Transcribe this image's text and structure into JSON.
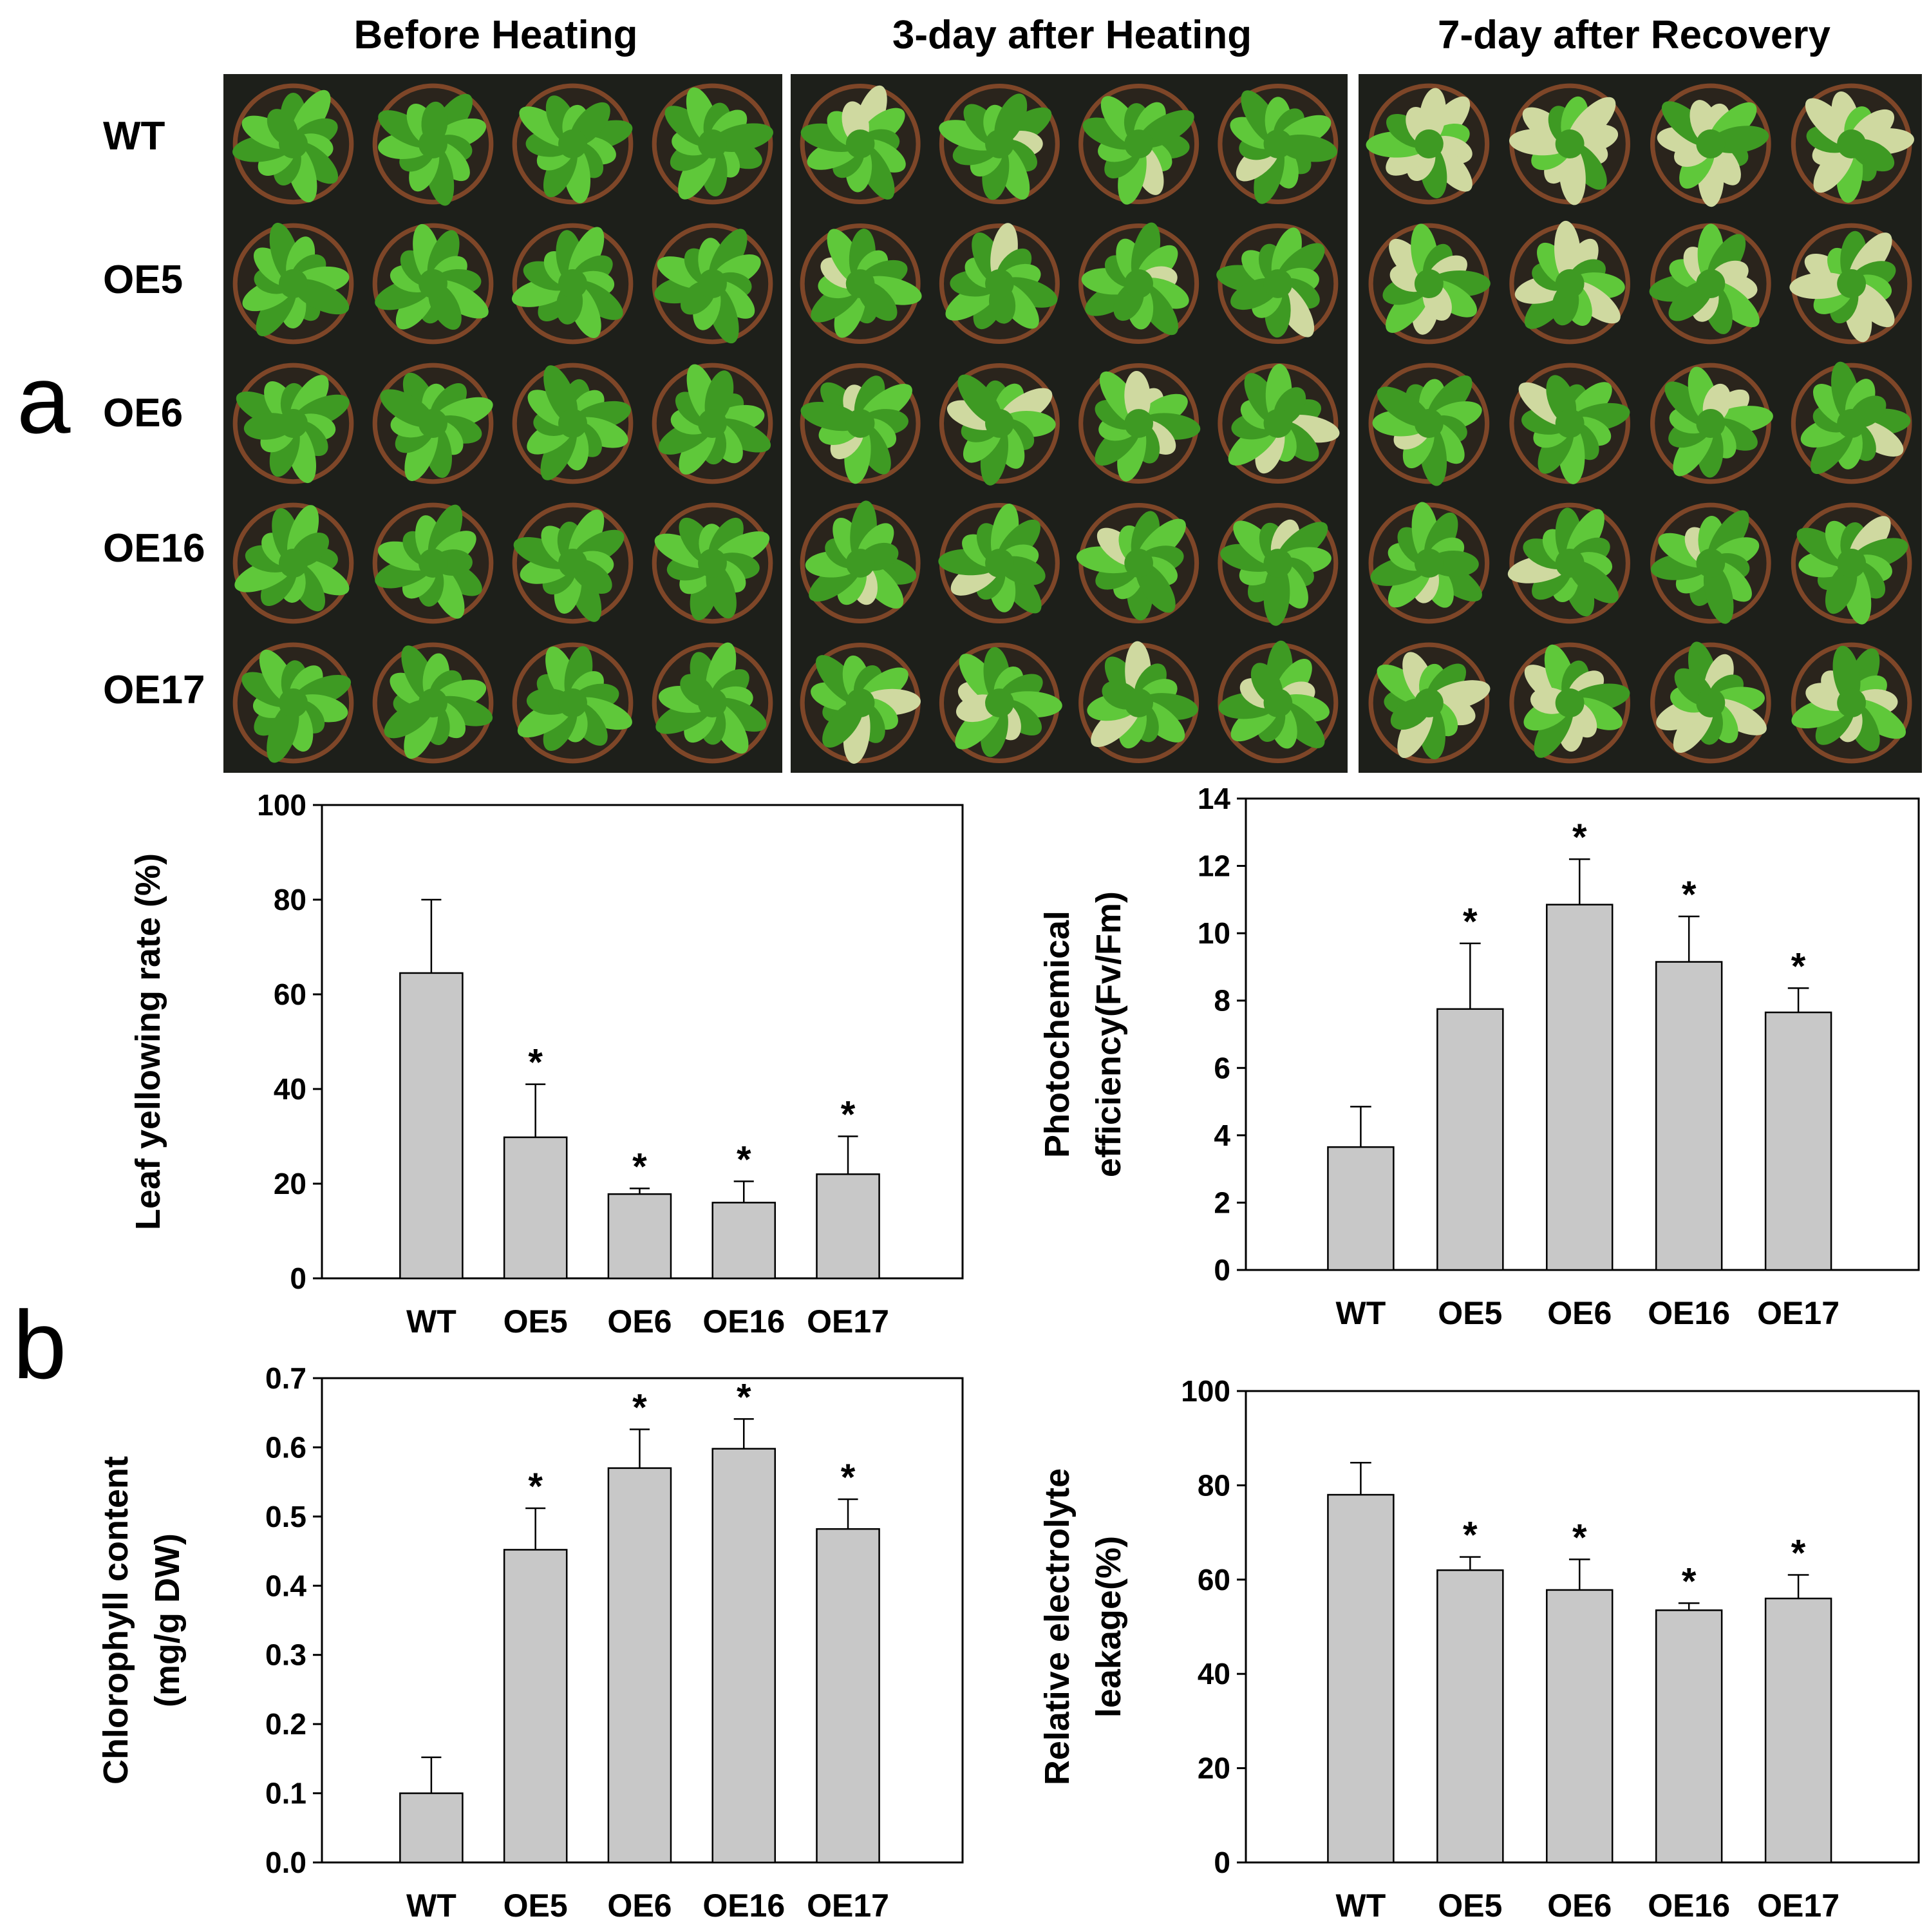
{
  "panel_a": {
    "letter": "a",
    "conditions": [
      "Before Heating",
      "3-day after Heating",
      "7-day after Recovery"
    ],
    "genotypes": [
      "WT",
      "OE5",
      "OE6",
      "OE16",
      "OE17"
    ],
    "photo_colors": {
      "background": "#1d1f1a",
      "leaf": "#5fc83a",
      "leaf_dark": "#3e9a23",
      "leaf_yellow": "#cfd9a0",
      "pot": "#8a4a2a"
    },
    "yellowing_shown": [
      [
        0,
        0,
        0,
        0,
        0
      ],
      [
        0.05,
        0.1,
        0.15,
        0.1,
        0.15
      ],
      [
        0.55,
        0.35,
        0.05,
        0.05,
        0.35
      ]
    ]
  },
  "panel_b": {
    "letter": "b"
  },
  "chart_data": [
    {
      "type": "bar",
      "title": "",
      "xlabel": "",
      "ylabel_lines": [
        "Leaf yellowing rate (%)"
      ],
      "categories": [
        "WT",
        "OE5",
        "OE6",
        "OE16",
        "OE17"
      ],
      "values": [
        64.5,
        29.8,
        17.8,
        16.0,
        22.0
      ],
      "errors": [
        15.5,
        11.2,
        1.2,
        4.5,
        8.0
      ],
      "significance": [
        "",
        "*",
        "*",
        "*",
        "*"
      ],
      "ylim": [
        0,
        100
      ],
      "yticks": [
        "0",
        "20",
        "40",
        "60",
        "80",
        "100"
      ],
      "bar_color": "#c8c8c8"
    },
    {
      "type": "bar",
      "title": "",
      "xlabel": "",
      "ylabel_lines": [
        "Photochemical",
        "efficiency(Fv/Fm)"
      ],
      "categories": [
        "WT",
        "OE5",
        "OE6",
        "OE16",
        "OE17"
      ],
      "values": [
        3.65,
        7.75,
        10.85,
        9.15,
        7.65
      ],
      "errors": [
        1.2,
        1.95,
        1.35,
        1.35,
        0.72
      ],
      "significance": [
        "",
        "*",
        "*",
        "*",
        "*"
      ],
      "ylim": [
        0,
        14
      ],
      "yticks": [
        "0",
        "2",
        "4",
        "6",
        "8",
        "10",
        "12",
        "14"
      ],
      "bar_color": "#c8c8c8"
    },
    {
      "type": "bar",
      "title": "",
      "xlabel": "",
      "ylabel_lines": [
        "Chlorophyll content",
        "(mg/g DW)"
      ],
      "categories": [
        "WT",
        "OE5",
        "OE6",
        "OE16",
        "OE17"
      ],
      "values": [
        0.1,
        0.452,
        0.57,
        0.598,
        0.482
      ],
      "errors": [
        0.052,
        0.06,
        0.056,
        0.043,
        0.043
      ],
      "significance": [
        "",
        "*",
        "*",
        "*",
        "*"
      ],
      "ylim": [
        0,
        0.7
      ],
      "yticks": [
        "0.0",
        "0.1",
        "0.2",
        "0.3",
        "0.4",
        "0.5",
        "0.6",
        "0.7"
      ],
      "bar_color": "#c8c8c8"
    },
    {
      "type": "bar",
      "title": "",
      "xlabel": "",
      "ylabel_lines": [
        "Relative electrolyte",
        "leakage(%)"
      ],
      "categories": [
        "WT",
        "OE5",
        "OE6",
        "OE16",
        "OE17"
      ],
      "values": [
        78.0,
        62.0,
        57.8,
        53.5,
        56.0
      ],
      "errors": [
        6.8,
        2.8,
        6.5,
        1.5,
        5.0
      ],
      "significance": [
        "",
        "*",
        "*",
        "*",
        "*"
      ],
      "ylim": [
        0,
        100
      ],
      "yticks": [
        "0",
        "20",
        "40",
        "60",
        "80",
        "100"
      ],
      "bar_color": "#c8c8c8"
    }
  ]
}
